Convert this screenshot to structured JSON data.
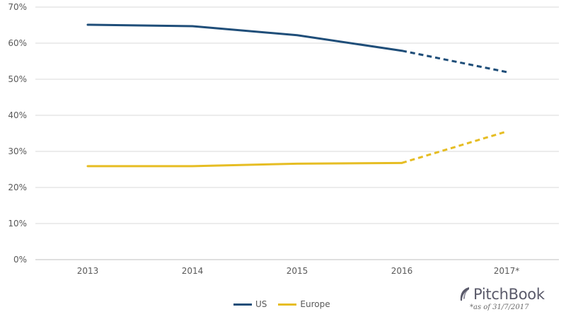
{
  "chart_data": {
    "type": "line",
    "categories": [
      "2013",
      "2014",
      "2015",
      "2016",
      "2017*"
    ],
    "series": [
      {
        "name": "US",
        "values": [
          65.1,
          64.7,
          62.2,
          57.9,
          52.0
        ],
        "color": "#1f4e79",
        "projected_from_index": 3
      },
      {
        "name": "Europe",
        "values": [
          25.9,
          25.9,
          26.6,
          26.8,
          35.5
        ],
        "color": "#e6bd23",
        "projected_from_index": 3
      }
    ],
    "yticks": [
      "0%",
      "10%",
      "20%",
      "30%",
      "40%",
      "50%",
      "60%",
      "70%"
    ],
    "ylim": [
      0,
      70
    ],
    "title": "",
    "xlabel": "",
    "ylabel": "",
    "grid": true,
    "legend_position": "bottom-center"
  },
  "brand": {
    "name": "PitchBook",
    "icon": "pitchbook-feather-logo",
    "footnote": "*as of 31/7/2017"
  }
}
